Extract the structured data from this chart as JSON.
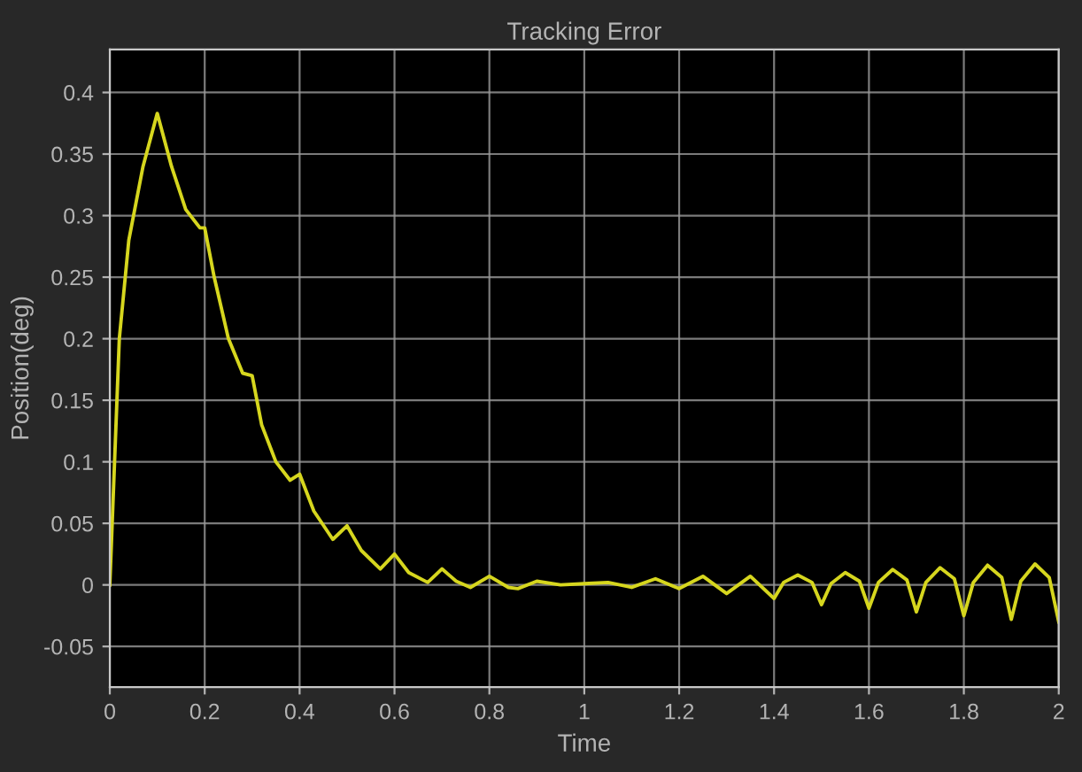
{
  "chart_data": {
    "type": "line",
    "title": "Tracking Error",
    "xlabel": "Time",
    "ylabel": "Position(deg)",
    "xlim": [
      0,
      2
    ],
    "ylim": [
      -0.083,
      0.435
    ],
    "xticks": [
      0,
      0.2,
      0.4,
      0.6,
      0.8,
      1,
      1.2,
      1.4,
      1.6,
      1.8,
      2
    ],
    "yticks": [
      -0.05,
      0,
      0.05,
      0.1,
      0.15,
      0.2,
      0.25,
      0.3,
      0.35,
      0.4
    ],
    "grid": true,
    "series": [
      {
        "color": "#d6d61e",
        "x": [
          0,
          0.005,
          0.02,
          0.04,
          0.07,
          0.1,
          0.13,
          0.16,
          0.19,
          0.2,
          0.22,
          0.25,
          0.28,
          0.3,
          0.32,
          0.35,
          0.38,
          0.4,
          0.43,
          0.47,
          0.5,
          0.53,
          0.57,
          0.6,
          0.63,
          0.67,
          0.7,
          0.73,
          0.76,
          0.8,
          0.84,
          0.86,
          0.9,
          0.95,
          1.0,
          1.05,
          1.1,
          1.15,
          1.2,
          1.25,
          1.3,
          1.35,
          1.4,
          1.42,
          1.45,
          1.48,
          1.5,
          1.52,
          1.55,
          1.58,
          1.6,
          1.62,
          1.65,
          1.68,
          1.7,
          1.72,
          1.75,
          1.78,
          1.8,
          1.82,
          1.85,
          1.88,
          1.9,
          1.92,
          1.95,
          1.98,
          2.0
        ],
        "values": [
          0,
          0.05,
          0.2,
          0.28,
          0.34,
          0.383,
          0.34,
          0.305,
          0.29,
          0.29,
          0.25,
          0.2,
          0.172,
          0.17,
          0.13,
          0.1,
          0.085,
          0.09,
          0.06,
          0.037,
          0.048,
          0.028,
          0.013,
          0.025,
          0.01,
          0.002,
          0.013,
          0.003,
          -0.002,
          0.007,
          -0.002,
          -0.003,
          0.003,
          0,
          0.001,
          0.002,
          -0.002,
          0.005,
          -0.003,
          0.007,
          -0.007,
          0.007,
          -0.011,
          0.002,
          0.008,
          0.002,
          -0.016,
          0.001,
          0.01,
          0.003,
          -0.019,
          0.002,
          0.0125,
          0.004,
          -0.022,
          0.002,
          0.014,
          0.005,
          -0.025,
          0.002,
          0.016,
          0.006,
          -0.028,
          0.003,
          0.017,
          0.006,
          -0.03
        ]
      }
    ]
  }
}
